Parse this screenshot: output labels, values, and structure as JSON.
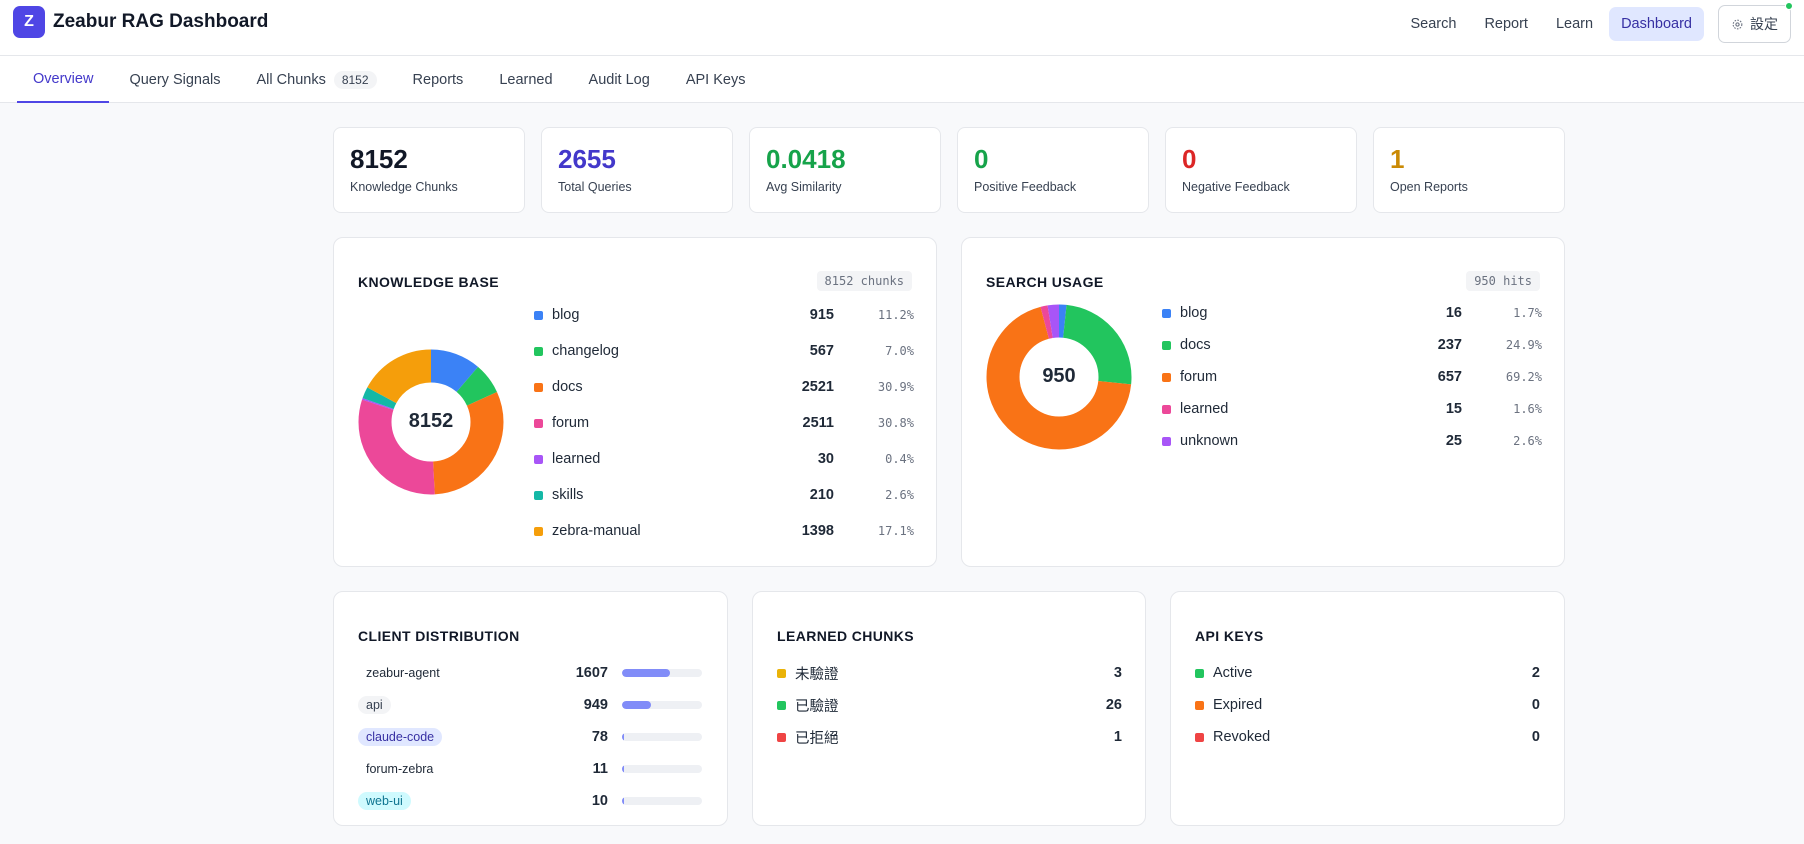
{
  "app": {
    "logo_letter": "Z",
    "title": "Zeabur RAG Dashboard"
  },
  "topnav": {
    "items": [
      {
        "label": "Search",
        "active": false
      },
      {
        "label": "Report",
        "active": false
      },
      {
        "label": "Learn",
        "active": false
      },
      {
        "label": "Dashboard",
        "active": true
      }
    ],
    "settings_label": "設定"
  },
  "tabs": [
    {
      "label": "Overview",
      "active": true,
      "count": ""
    },
    {
      "label": "Query Signals",
      "active": false,
      "count": ""
    },
    {
      "label": "All Chunks",
      "active": false,
      "count": "8152"
    },
    {
      "label": "Reports",
      "active": false,
      "count": ""
    },
    {
      "label": "Learned",
      "active": false,
      "count": ""
    },
    {
      "label": "Audit Log",
      "active": false,
      "count": ""
    },
    {
      "label": "API Keys",
      "active": false,
      "count": ""
    }
  ],
  "stats": [
    {
      "value": "8152",
      "label": "Knowledge Chunks",
      "color": "#111827"
    },
    {
      "value": "2655",
      "label": "Total Queries",
      "color": "#4338ca"
    },
    {
      "value": "0.0418",
      "label": "Avg Similarity",
      "color": "#16a34a"
    },
    {
      "value": "0",
      "label": "Positive Feedback",
      "color": "#16a34a"
    },
    {
      "value": "0",
      "label": "Negative Feedback",
      "color": "#dc2626"
    },
    {
      "value": "1",
      "label": "Open Reports",
      "color": "#ca8a04"
    }
  ],
  "knowledge_base": {
    "title": "KNOWLEDGE BASE",
    "badge": "8152 chunks",
    "center": "8152",
    "items": [
      {
        "name": "blog",
        "count": "915",
        "pct": "11.2%",
        "value": 915,
        "color": "#3b82f6"
      },
      {
        "name": "changelog",
        "count": "567",
        "pct": "7.0%",
        "value": 567,
        "color": "#22c55e"
      },
      {
        "name": "docs",
        "count": "2521",
        "pct": "30.9%",
        "value": 2521,
        "color": "#f97316"
      },
      {
        "name": "forum",
        "count": "2511",
        "pct": "30.8%",
        "value": 2511,
        "color": "#ec4899"
      },
      {
        "name": "learned",
        "count": "30",
        "pct": "0.4%",
        "value": 30,
        "color": "#a855f7"
      },
      {
        "name": "skills",
        "count": "210",
        "pct": "2.6%",
        "value": 210,
        "color": "#14b8a6"
      },
      {
        "name": "zebra-manual",
        "count": "1398",
        "pct": "17.1%",
        "value": 1398,
        "color": "#f59e0b"
      }
    ]
  },
  "search_usage": {
    "title": "SEARCH USAGE",
    "badge": "950 hits",
    "center": "950",
    "items": [
      {
        "name": "blog",
        "count": "16",
        "pct": "1.7%",
        "value": 16,
        "color": "#3b82f6"
      },
      {
        "name": "docs",
        "count": "237",
        "pct": "24.9%",
        "value": 237,
        "color": "#22c55e"
      },
      {
        "name": "forum",
        "count": "657",
        "pct": "69.2%",
        "value": 657,
        "color": "#f97316"
      },
      {
        "name": "learned",
        "count": "15",
        "pct": "1.6%",
        "value": 15,
        "color": "#ec4899"
      },
      {
        "name": "unknown",
        "count": "25",
        "pct": "2.6%",
        "value": 25,
        "color": "#a855f7"
      }
    ]
  },
  "client_distribution": {
    "title": "CLIENT DISTRIBUTION",
    "items": [
      {
        "name": "zeabur-agent",
        "count": "1607",
        "fraction": 0.6,
        "chip_bg": "#ffffff",
        "chip_fg": "#1f2937"
      },
      {
        "name": "api",
        "count": "949",
        "fraction": 0.36,
        "chip_bg": "#f3f4f6",
        "chip_fg": "#374151"
      },
      {
        "name": "claude-code",
        "count": "78",
        "fraction": 0.03,
        "chip_bg": "#e0e7ff",
        "chip_fg": "#3730a3"
      },
      {
        "name": "forum-zebra",
        "count": "11",
        "fraction": 0.01,
        "chip_bg": "#ffffff",
        "chip_fg": "#1f2937"
      },
      {
        "name": "web-ui",
        "count": "10",
        "fraction": 0.01,
        "chip_bg": "#cffafe",
        "chip_fg": "#0e7490"
      }
    ]
  },
  "learned_chunks": {
    "title": "LEARNED CHUNKS",
    "items": [
      {
        "name": "未驗證",
        "count": "3",
        "color": "#eab308"
      },
      {
        "name": "已驗證",
        "count": "26",
        "color": "#22c55e"
      },
      {
        "name": "已拒絕",
        "count": "1",
        "color": "#ef4444"
      }
    ]
  },
  "api_keys": {
    "title": "API KEYS",
    "items": [
      {
        "name": "Active",
        "count": "2",
        "color": "#22c55e"
      },
      {
        "name": "Expired",
        "count": "0",
        "color": "#f97316"
      },
      {
        "name": "Revoked",
        "count": "0",
        "color": "#ef4444"
      }
    ]
  }
}
